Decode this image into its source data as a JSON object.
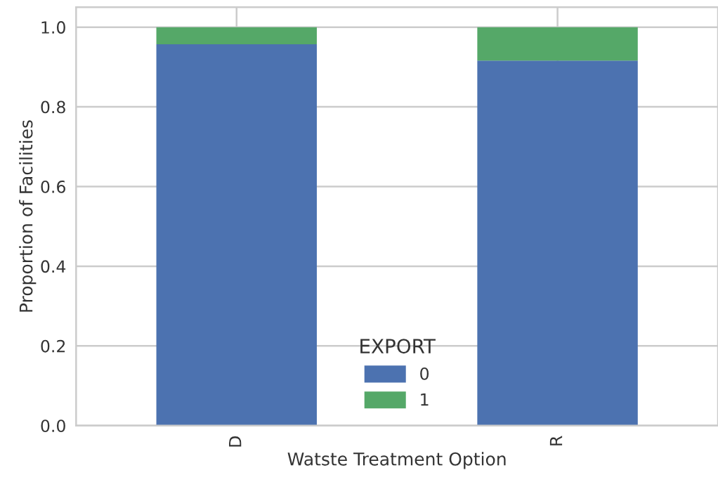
{
  "chart_data": {
    "type": "bar",
    "stacked": true,
    "xlabel": "Watste Treatment Option",
    "ylabel": "Proportion of Facilities",
    "legend_title": "EXPORT",
    "categories": [
      "D",
      "R"
    ],
    "series": [
      {
        "name": "0",
        "color": "#4c72b0",
        "values": [
          0.957,
          0.916
        ]
      },
      {
        "name": "1",
        "color": "#55a868",
        "values": [
          0.043,
          0.084
        ]
      }
    ],
    "ylim": [
      0,
      1.05
    ],
    "yticks": [
      {
        "value": 0,
        "label": "0.0"
      },
      {
        "value": 0.2,
        "label": "0.2"
      },
      {
        "value": 0.4,
        "label": "0.4"
      },
      {
        "value": 0.6,
        "label": "0.6"
      },
      {
        "value": 0.8,
        "label": "0.8"
      },
      {
        "value": 1.0,
        "label": "1.0"
      }
    ],
    "grid": true,
    "legend": "bottom"
  }
}
